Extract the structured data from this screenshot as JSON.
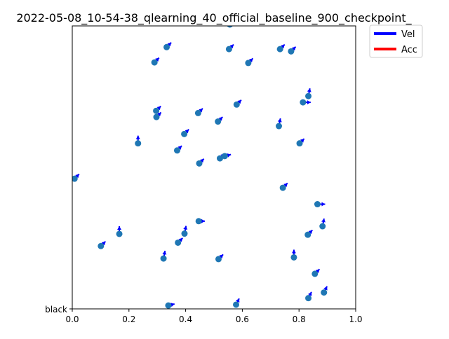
{
  "chart_data": {
    "type": "scatter",
    "title": "2022-05-08_10-54-38_qlearning_40_official_baseline_900_checkpoint_",
    "xlabel": "",
    "ylabel": "",
    "xlim": [
      0,
      1
    ],
    "ylim": [
      0,
      1
    ],
    "x_ticks": [
      "0.0",
      "0.2",
      "0.4",
      "0.6",
      "0.8",
      "1.0"
    ],
    "x_tick_values": [
      0,
      0.2,
      0.4,
      0.6,
      0.8,
      1.0
    ],
    "y_ticks": [
      "black"
    ],
    "y_tick_values": [
      0
    ],
    "grid": false,
    "legend": {
      "placement": "outside-top-right",
      "entries": [
        {
          "name": "Vel",
          "color": "#0000ff"
        },
        {
          "name": "Acc",
          "color": "#ff0000"
        }
      ]
    },
    "marker_color": "#1f77b4",
    "points": [
      {
        "x": 0.556,
        "y": 1.005,
        "vx": 0.3,
        "vy": 0.3
      },
      {
        "x": 0.333,
        "y": 0.925,
        "vx": 0.3,
        "vy": 0.3
      },
      {
        "x": 0.553,
        "y": 0.918,
        "vx": 0.3,
        "vy": 0.3
      },
      {
        "x": 0.733,
        "y": 0.918,
        "vx": 0.3,
        "vy": 0.3
      },
      {
        "x": 0.772,
        "y": 0.91,
        "vx": 0.3,
        "vy": 0.3
      },
      {
        "x": 0.29,
        "y": 0.871,
        "vx": 0.3,
        "vy": 0.3
      },
      {
        "x": 0.621,
        "y": 0.869,
        "vx": 0.3,
        "vy": 0.3
      },
      {
        "x": 0.833,
        "y": 0.752,
        "vx": 0.1,
        "vy": 0.5
      },
      {
        "x": 0.814,
        "y": 0.73,
        "vx": 0.5,
        "vy": 0.0
      },
      {
        "x": 0.58,
        "y": 0.722,
        "vx": 0.3,
        "vy": 0.3
      },
      {
        "x": 0.296,
        "y": 0.7,
        "vx": 0.3,
        "vy": 0.3
      },
      {
        "x": 0.444,
        "y": 0.692,
        "vx": 0.3,
        "vy": 0.3
      },
      {
        "x": 0.297,
        "y": 0.678,
        "vx": 0.3,
        "vy": 0.3
      },
      {
        "x": 0.514,
        "y": 0.662,
        "vx": 0.3,
        "vy": 0.3
      },
      {
        "x": 0.729,
        "y": 0.646,
        "vx": 0.1,
        "vy": 0.5
      },
      {
        "x": 0.395,
        "y": 0.618,
        "vx": 0.3,
        "vy": 0.3
      },
      {
        "x": 0.232,
        "y": 0.585,
        "vx": 0.0,
        "vy": 0.5
      },
      {
        "x": 0.802,
        "y": 0.585,
        "vx": 0.3,
        "vy": 0.3
      },
      {
        "x": 0.37,
        "y": 0.56,
        "vx": 0.3,
        "vy": 0.3
      },
      {
        "x": 0.538,
        "y": 0.54,
        "vx": 0.4,
        "vy": 0.1
      },
      {
        "x": 0.521,
        "y": 0.532,
        "vx": 0.3,
        "vy": 0.3
      },
      {
        "x": 0.448,
        "y": 0.514,
        "vx": 0.3,
        "vy": 0.3
      },
      {
        "x": 0.008,
        "y": 0.46,
        "vx": 0.3,
        "vy": 0.3
      },
      {
        "x": 0.743,
        "y": 0.428,
        "vx": 0.3,
        "vy": 0.3
      },
      {
        "x": 0.865,
        "y": 0.37,
        "vx": 0.5,
        "vy": 0.0
      },
      {
        "x": 0.446,
        "y": 0.31,
        "vx": 0.4,
        "vy": 0.0
      },
      {
        "x": 0.883,
        "y": 0.292,
        "vx": 0.1,
        "vy": 0.5
      },
      {
        "x": 0.396,
        "y": 0.266,
        "vx": 0.1,
        "vy": 0.5
      },
      {
        "x": 0.831,
        "y": 0.262,
        "vx": 0.3,
        "vy": 0.3
      },
      {
        "x": 0.166,
        "y": 0.265,
        "vx": 0.0,
        "vy": 0.5
      },
      {
        "x": 0.373,
        "y": 0.234,
        "vx": 0.3,
        "vy": 0.3
      },
      {
        "x": 0.101,
        "y": 0.222,
        "vx": 0.3,
        "vy": 0.3
      },
      {
        "x": 0.782,
        "y": 0.182,
        "vx": 0.0,
        "vy": 0.5
      },
      {
        "x": 0.322,
        "y": 0.178,
        "vx": 0.1,
        "vy": 0.5
      },
      {
        "x": 0.516,
        "y": 0.176,
        "vx": 0.3,
        "vy": 0.3
      },
      {
        "x": 0.856,
        "y": 0.124,
        "vx": 0.3,
        "vy": 0.3
      },
      {
        "x": 0.888,
        "y": 0.058,
        "vx": 0.2,
        "vy": 0.4
      },
      {
        "x": 0.833,
        "y": 0.038,
        "vx": 0.2,
        "vy": 0.4
      },
      {
        "x": 0.339,
        "y": 0.012,
        "vx": 0.4,
        "vy": 0.1
      },
      {
        "x": 0.578,
        "y": 0.015,
        "vx": 0.2,
        "vy": 0.4
      }
    ]
  }
}
